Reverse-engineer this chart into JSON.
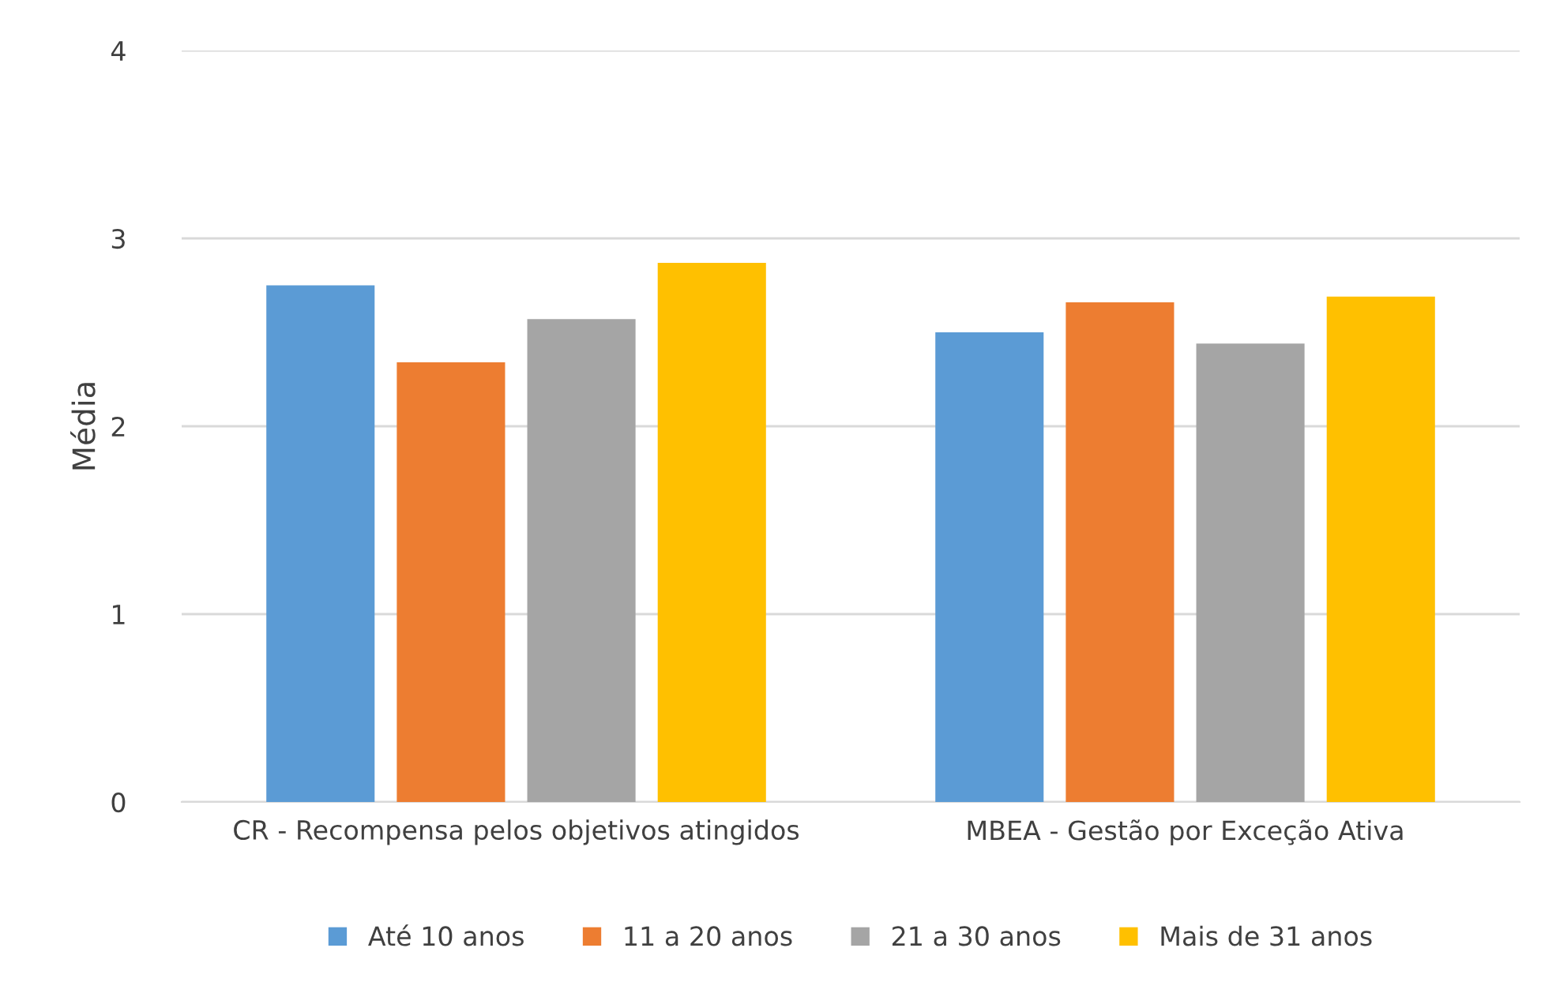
{
  "chart_data": {
    "type": "bar",
    "ylabel": "Média",
    "categories": [
      "CR - Recompensa pelos objetivos atingidos",
      "MBEA - Gestão por Exceção Ativa"
    ],
    "series": [
      {
        "name": "Até 10 anos",
        "color": "#5b9bd5",
        "values": [
          2.75,
          2.5
        ]
      },
      {
        "name": "11 a 20 anos",
        "color": "#ed7d31",
        "values": [
          2.34,
          2.66
        ]
      },
      {
        "name": "21 a 30 anos",
        "color": "#a5a5a5",
        "values": [
          2.57,
          2.44
        ]
      },
      {
        "name": "Mais de 31 anos",
        "color": "#ffc000",
        "values": [
          2.87,
          2.69
        ]
      }
    ],
    "ylim": [
      0,
      4
    ],
    "yticks": [
      0,
      1,
      2,
      3,
      4
    ],
    "grid": "y",
    "legend": "bottom"
  }
}
